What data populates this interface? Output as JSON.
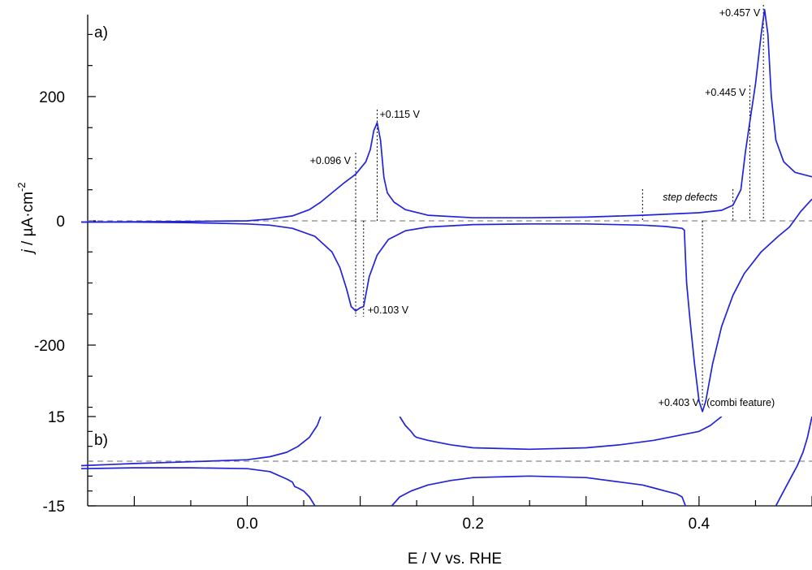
{
  "chart_data": [
    {
      "panel": "a)",
      "type": "line",
      "xlabel": "E / V vs. RHE",
      "ylabel": "j / µA·cm",
      "ylabel_sup": "-2",
      "xlim": [
        -0.147,
        0.5
      ],
      "ylim": [
        -315,
        345
      ],
      "yticks": [
        -200,
        0,
        200
      ],
      "yticks_labels": [
        "-200",
        "0",
        "200"
      ],
      "series": [
        {
          "color": "#2323d8",
          "points": [
            [
              -0.147,
              -2
            ],
            [
              -0.1,
              -1.5
            ],
            [
              -0.05,
              -1
            ],
            [
              0,
              0
            ],
            [
              0.02,
              3
            ],
            [
              0.04,
              8
            ],
            [
              0.055,
              18
            ],
            [
              0.065,
              30
            ],
            [
              0.075,
              45
            ],
            [
              0.085,
              60
            ],
            [
              0.096,
              75
            ],
            [
              0.105,
              95
            ],
            [
              0.109,
              115
            ],
            [
              0.112,
              145
            ],
            [
              0.115,
              158
            ],
            [
              0.118,
              130
            ],
            [
              0.121,
              70
            ],
            [
              0.124,
              45
            ],
            [
              0.13,
              30
            ],
            [
              0.14,
              18
            ],
            [
              0.16,
              9
            ],
            [
              0.2,
              5
            ],
            [
              0.25,
              5
            ],
            [
              0.3,
              6
            ],
            [
              0.35,
              9
            ],
            [
              0.4,
              13
            ],
            [
              0.42,
              17
            ],
            [
              0.43,
              25
            ],
            [
              0.437,
              50
            ],
            [
              0.441,
              110
            ],
            [
              0.445,
              160
            ],
            [
              0.45,
              220
            ],
            [
              0.455,
              300
            ],
            [
              0.458,
              340
            ],
            [
              0.461,
              300
            ],
            [
              0.464,
              200
            ],
            [
              0.468,
              130
            ],
            [
              0.475,
              95
            ],
            [
              0.485,
              78
            ],
            [
              0.5,
              71
            ]
          ]
        },
        {
          "color": "#2323d8",
          "points": [
            [
              0.5,
              35
            ],
            [
              0.49,
              15
            ],
            [
              0.48,
              -10
            ],
            [
              0.47,
              -25
            ],
            [
              0.455,
              -50
            ],
            [
              0.44,
              -85
            ],
            [
              0.43,
              -120
            ],
            [
              0.42,
              -170
            ],
            [
              0.412,
              -230
            ],
            [
              0.406,
              -290
            ],
            [
              0.403,
              -307
            ],
            [
              0.4,
              -290
            ],
            [
              0.396,
              -230
            ],
            [
              0.392,
              -160
            ],
            [
              0.389,
              -100
            ],
            [
              0.388,
              -60
            ],
            [
              0.387,
              -15
            ],
            [
              0.385,
              -12
            ],
            [
              0.37,
              -9
            ],
            [
              0.35,
              -7
            ],
            [
              0.3,
              -5
            ],
            [
              0.25,
              -5
            ],
            [
              0.2,
              -6
            ],
            [
              0.16,
              -10
            ],
            [
              0.14,
              -16
            ],
            [
              0.125,
              -30
            ],
            [
              0.115,
              -55
            ],
            [
              0.108,
              -90
            ],
            [
              0.103,
              -138
            ],
            [
              0.1,
              -140
            ],
            [
              0.096,
              -145
            ],
            [
              0.092,
              -138
            ],
            [
              0.088,
              -110
            ],
            [
              0.082,
              -75
            ],
            [
              0.075,
              -50
            ],
            [
              0.06,
              -25
            ],
            [
              0.04,
              -12
            ],
            [
              0.02,
              -7
            ],
            [
              0,
              -5
            ],
            [
              -0.05,
              -3
            ],
            [
              -0.1,
              -2
            ],
            [
              -0.147,
              -2
            ]
          ]
        }
      ],
      "baseline": 0,
      "annotations": [
        {
          "text": "+0.096 V",
          "x": 0.096,
          "kind": "marker"
        },
        {
          "text": "+0.115 V",
          "x": 0.115,
          "kind": "marker"
        },
        {
          "text": "+0.103 V",
          "x": 0.103,
          "kind": "marker"
        },
        {
          "text": "+0.445 V",
          "x": 0.445,
          "kind": "marker"
        },
        {
          "text": "+0.457 V",
          "x": 0.457,
          "kind": "marker"
        },
        {
          "text": "+0.403 V",
          "x": 0.403,
          "kind": "marker"
        },
        {
          "text": "(combi feature)",
          "x": 0.403,
          "kind": "note"
        },
        {
          "text": "step defects",
          "x": 0.39,
          "kind": "region",
          "x_range": [
            0.35,
            0.43
          ]
        }
      ]
    },
    {
      "panel": "b)",
      "type": "line",
      "xlabel": "E / V vs. RHE",
      "xlim": [
        -0.147,
        0.5
      ],
      "ylim": [
        -15,
        15
      ],
      "yticks": [
        -15,
        15
      ],
      "yticks_labels": [
        "-15",
        "15"
      ],
      "xticks": [
        0.0,
        0.2,
        0.4
      ],
      "xticks_labels": [
        "0.0",
        "0.2",
        "0.4"
      ],
      "series": [
        {
          "color": "#2323d8",
          "points": [
            [
              -0.147,
              -1.5
            ],
            [
              -0.1,
              -0.8
            ],
            [
              -0.05,
              -0.2
            ],
            [
              0,
              0.5
            ],
            [
              0.02,
              1.5
            ],
            [
              0.035,
              3
            ],
            [
              0.045,
              5
            ],
            [
              0.055,
              8
            ],
            [
              0.062,
              12
            ],
            [
              0.065,
              15
            ]
          ]
        },
        {
          "color": "#2323d8",
          "points": [
            [
              0.135,
              15
            ],
            [
              0.14,
              12
            ],
            [
              0.145,
              10
            ],
            [
              0.148,
              8.5
            ],
            [
              0.15,
              8
            ],
            [
              0.16,
              7
            ],
            [
              0.18,
              5.5
            ],
            [
              0.2,
              4.5
            ],
            [
              0.25,
              4
            ],
            [
              0.3,
              4.5
            ],
            [
              0.33,
              5.5
            ],
            [
              0.36,
              7
            ],
            [
              0.38,
              8.5
            ],
            [
              0.4,
              10
            ],
            [
              0.41,
              12
            ],
            [
              0.42,
              15
            ]
          ]
        },
        {
          "color": "#2323d8",
          "points": [
            [
              -0.147,
              -2.5
            ],
            [
              -0.1,
              -2.2
            ],
            [
              -0.05,
              -2.2
            ],
            [
              0,
              -2.5
            ],
            [
              0.02,
              -3.5
            ],
            [
              0.035,
              -6
            ],
            [
              0.04,
              -7
            ],
            [
              0.042,
              -8.5
            ],
            [
              0.045,
              -9
            ],
            [
              0.05,
              -10
            ],
            [
              0.055,
              -12
            ],
            [
              0.06,
              -15
            ]
          ]
        },
        {
          "color": "#2323d8",
          "points": [
            [
              0.128,
              -15
            ],
            [
              0.135,
              -12
            ],
            [
              0.145,
              -10
            ],
            [
              0.16,
              -8
            ],
            [
              0.18,
              -6.5
            ],
            [
              0.2,
              -5.5
            ],
            [
              0.25,
              -5
            ],
            [
              0.3,
              -5.5
            ],
            [
              0.33,
              -7
            ],
            [
              0.35,
              -8
            ],
            [
              0.36,
              -9
            ],
            [
              0.37,
              -10
            ],
            [
              0.38,
              -11
            ],
            [
              0.385,
              -12
            ],
            [
              0.388,
              -15
            ]
          ]
        },
        {
          "color": "#2323d8",
          "points": [
            [
              0.468,
              -15
            ],
            [
              0.475,
              -10
            ],
            [
              0.482,
              -5
            ],
            [
              0.487,
              -1.5
            ],
            [
              0.492,
              3
            ],
            [
              0.496,
              8
            ],
            [
              0.5,
              15
            ]
          ]
        }
      ],
      "baseline": 0
    }
  ]
}
